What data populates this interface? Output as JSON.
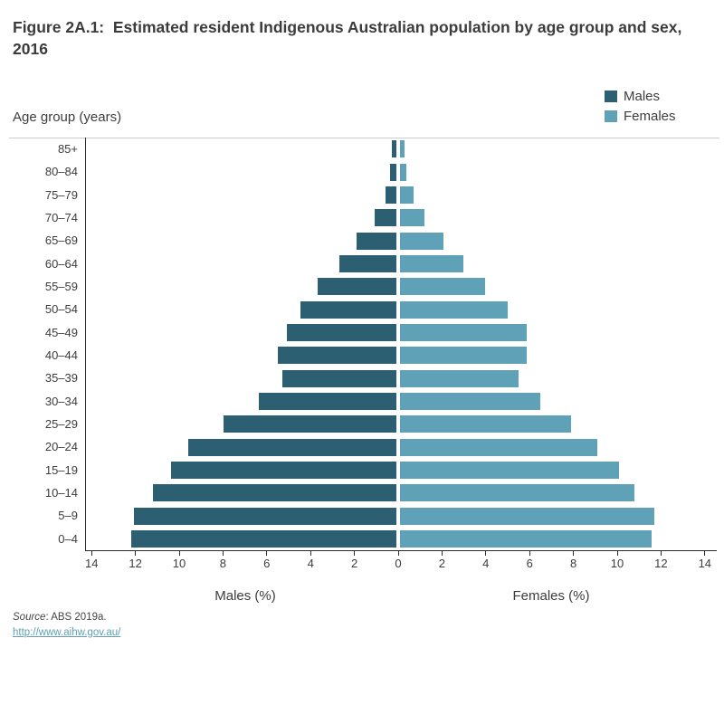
{
  "title": "Figure 2A.1:  Estimated resident Indigenous Australian population by age group and sex, 2016",
  "legend": {
    "items": [
      {
        "label": "Males",
        "color": "#2c5f72"
      },
      {
        "label": "Females",
        "color": "#5fa2b8"
      }
    ]
  },
  "chart_data": {
    "type": "bar",
    "subtype": "population_pyramid",
    "title": "Figure 2A.1: Estimated resident Indigenous Australian population by age group and sex, 2016",
    "ylabel": "Age group (years)",
    "xlabel_left": "Males (%)",
    "xlabel_right": "Females (%)",
    "categories_top_to_bottom": [
      "85+",
      "80–84",
      "75–79",
      "70–74",
      "65–69",
      "60–64",
      "55–59",
      "50–54",
      "45–49",
      "40–44",
      "35–39",
      "30–34",
      "25–29",
      "20–24",
      "15–19",
      "10–14",
      "5–9",
      "0–4"
    ],
    "series": [
      {
        "name": "Males",
        "side": "left",
        "color": "#2c5f72",
        "values": [
          0.2,
          0.3,
          0.5,
          1.0,
          1.8,
          2.6,
          3.6,
          4.4,
          5.0,
          5.4,
          5.2,
          6.3,
          7.9,
          9.5,
          10.3,
          11.1,
          12.0,
          12.1
        ]
      },
      {
        "name": "Females",
        "side": "right",
        "color": "#5fa2b8",
        "values": [
          0.2,
          0.3,
          0.6,
          1.1,
          2.0,
          2.9,
          3.9,
          4.9,
          5.8,
          5.8,
          5.4,
          6.4,
          7.8,
          9.0,
          10.0,
          10.7,
          11.6,
          11.5
        ]
      }
    ],
    "x_tick_labels": [
      "14",
      "12",
      "10",
      "8",
      "6",
      "4",
      "2",
      "0",
      "2",
      "4",
      "6",
      "8",
      "10",
      "12",
      "14"
    ],
    "x_max_each_side": 14,
    "grid": false,
    "legend_position": "top-right"
  },
  "footer": {
    "source_italic": "Source",
    "source_text": ": ABS 2019a.",
    "link_text": "http://www.aihw.gov.au/"
  }
}
